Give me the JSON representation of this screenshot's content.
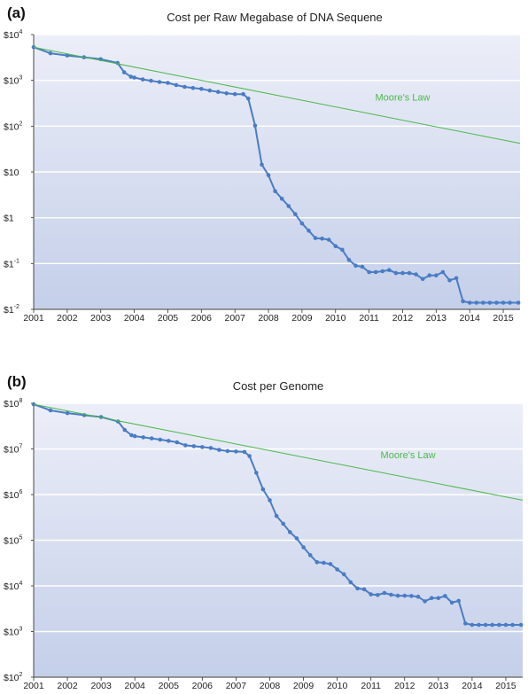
{
  "chart_data": [
    {
      "type": "line",
      "panel_label": "(a)",
      "title": "Cost per Raw Megabase of DNA Sequene",
      "x_ticks": [
        "2001",
        "2002",
        "2003",
        "2004",
        "2005",
        "2006",
        "2007",
        "2008",
        "2009",
        "2010",
        "2011",
        "2012",
        "2013",
        "2014",
        "2015"
      ],
      "y_scale": "log",
      "y_ticks": [
        {
          "base": "$10",
          "exp": "4",
          "value": 10000
        },
        {
          "base": "$10",
          "exp": "3",
          "value": 1000
        },
        {
          "base": "$10",
          "exp": "2",
          "value": 100
        },
        {
          "base": "$10",
          "exp": "",
          "value": 10
        },
        {
          "base": "$1",
          "exp": "",
          "value": 1
        },
        {
          "base": "$1",
          "exp": "-1",
          "value": 0.1
        },
        {
          "base": "$1",
          "exp": "-2",
          "value": 0.01
        }
      ],
      "ylim": [
        0.01,
        10000
      ],
      "xlim": [
        2001.0,
        2015.5
      ],
      "grid": true,
      "series": [
        {
          "name": "",
          "color": "#4a7cc4",
          "x": [
            2001.0,
            2001.5,
            2002.0,
            2002.5,
            2003.0,
            2003.5,
            2003.7,
            2003.9,
            2004.0,
            2004.25,
            2004.5,
            2004.75,
            2005.0,
            2005.25,
            2005.5,
            2005.75,
            2006.0,
            2006.25,
            2006.5,
            2006.75,
            2007.0,
            2007.25,
            2007.4,
            2007.6,
            2007.8,
            2008.0,
            2008.2,
            2008.4,
            2008.6,
            2008.8,
            2009.0,
            2009.2,
            2009.4,
            2009.6,
            2009.8,
            2010.0,
            2010.2,
            2010.4,
            2010.6,
            2010.8,
            2011.0,
            2011.2,
            2011.4,
            2011.6,
            2011.8,
            2012.0,
            2012.2,
            2012.4,
            2012.6,
            2012.8,
            2013.0,
            2013.2,
            2013.4,
            2013.6,
            2013.8,
            2014.0,
            2014.2,
            2014.4,
            2014.6,
            2014.8,
            2015.0,
            2015.2,
            2015.45
          ],
          "values": [
            5300,
            3900,
            3500,
            3200,
            2900,
            2400,
            1500,
            1200,
            1150,
            1050,
            980,
            920,
            880,
            790,
            720,
            680,
            650,
            600,
            560,
            520,
            500,
            500,
            400,
            103,
            14.5,
            8.5,
            3.8,
            2.6,
            1.8,
            1.2,
            0.75,
            0.52,
            0.36,
            0.35,
            0.33,
            0.24,
            0.2,
            0.12,
            0.09,
            0.085,
            0.065,
            0.065,
            0.068,
            0.072,
            0.062,
            0.062,
            0.062,
            0.058,
            0.046,
            0.055,
            0.055,
            0.065,
            0.043,
            0.048,
            0.015,
            0.014,
            0.014,
            0.014,
            0.014,
            0.014,
            0.014,
            0.014,
            0.014
          ]
        },
        {
          "name": "Moore's Law",
          "color": "#4cb84c",
          "x": [
            2001.0,
            2015.5
          ],
          "values": [
            5300,
            42
          ]
        }
      ]
    },
    {
      "type": "line",
      "panel_label": "(b)",
      "title": "Cost per Genome",
      "x_ticks": [
        "2001",
        "2002",
        "2003",
        "2004",
        "2005",
        "2006",
        "2007",
        "2008",
        "2009",
        "2010",
        "2011",
        "2012",
        "2013",
        "2014",
        "2015"
      ],
      "y_scale": "log",
      "y_ticks": [
        {
          "base": "$10",
          "exp": "8",
          "value": 100000000
        },
        {
          "base": "$10",
          "exp": "7",
          "value": 10000000
        },
        {
          "base": "$10",
          "exp": "6",
          "value": 1000000
        },
        {
          "base": "$10",
          "exp": "5",
          "value": 100000
        },
        {
          "base": "$10",
          "exp": "4",
          "value": 10000
        },
        {
          "base": "$10",
          "exp": "3",
          "value": 1000
        },
        {
          "base": "$10",
          "exp": "2",
          "value": 100
        }
      ],
      "ylim": [
        100,
        100000000
      ],
      "xlim": [
        2001.0,
        2015.5
      ],
      "grid": true,
      "series": [
        {
          "name": "",
          "color": "#4a7cc4",
          "x": [
            2001.0,
            2001.5,
            2002.0,
            2002.5,
            2003.0,
            2003.5,
            2003.7,
            2003.9,
            2004.0,
            2004.25,
            2004.5,
            2004.75,
            2005.0,
            2005.25,
            2005.5,
            2005.75,
            2006.0,
            2006.25,
            2006.5,
            2006.75,
            2007.0,
            2007.25,
            2007.4,
            2007.6,
            2007.8,
            2008.0,
            2008.2,
            2008.4,
            2008.6,
            2008.8,
            2009.0,
            2009.2,
            2009.4,
            2009.6,
            2009.8,
            2010.0,
            2010.2,
            2010.4,
            2010.6,
            2010.8,
            2011.0,
            2011.2,
            2011.4,
            2011.6,
            2011.8,
            2012.0,
            2012.2,
            2012.4,
            2012.6,
            2012.8,
            2013.0,
            2013.2,
            2013.4,
            2013.6,
            2013.8,
            2014.0,
            2014.2,
            2014.4,
            2014.6,
            2014.8,
            2015.0,
            2015.2,
            2015.45
          ],
          "values": [
            95000000,
            70000000,
            61000000,
            55000000,
            50000000,
            40000000,
            26000000,
            20000000,
            19000000,
            18000000,
            17000000,
            16000000,
            15000000,
            14000000,
            12000000,
            11500000,
            11000000,
            10500000,
            9500000,
            9000000,
            8800000,
            8600000,
            7000000,
            3000000,
            1300000,
            750000,
            340000,
            230000,
            150000,
            110000,
            70000,
            47000,
            33000,
            32000,
            30000,
            23000,
            18000,
            12000,
            8800,
            8400,
            6500,
            6300,
            7000,
            6400,
            6100,
            6100,
            6000,
            5800,
            4600,
            5400,
            5400,
            6000,
            4300,
            4700,
            1500,
            1400,
            1400,
            1400,
            1400,
            1400,
            1400,
            1400,
            1400
          ]
        },
        {
          "name": "Moore's Law",
          "color": "#4cb84c",
          "x": [
            2001.0,
            2015.5
          ],
          "values": [
            95000000,
            750000
          ]
        }
      ]
    }
  ]
}
